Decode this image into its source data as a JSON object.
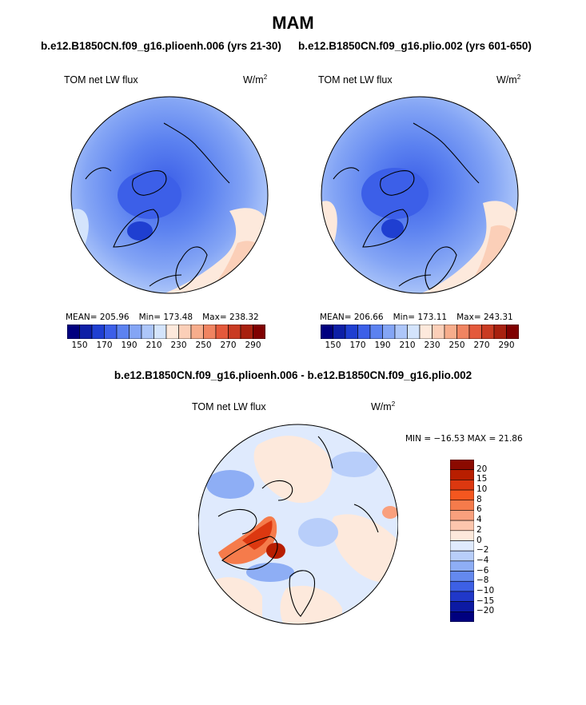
{
  "title": "MAM",
  "panels": [
    {
      "case": "b.e12.B1850CN.f09_g16.plioenh.006 (yrs 21-30)",
      "variable": "TOM net LW flux",
      "units": "W/m",
      "units_sup": "2",
      "mean": "MEAN= 205.96",
      "min": "Min= 173.48",
      "max": "Max= 238.32"
    },
    {
      "case": "b.e12.B1850CN.f09_g16.plio.002 (yrs 601-650)",
      "variable": "TOM net LW flux",
      "units": "W/m",
      "units_sup": "2",
      "mean": "MEAN= 206.66",
      "min": "Min= 173.11",
      "max": "Max= 243.31"
    }
  ],
  "difference": {
    "title": "b.e12.B1850CN.f09_g16.plioenh.006 - b.e12.B1850CN.f09_g16.plio.002",
    "variable": "TOM net LW flux",
    "units": "W/m",
    "units_sup": "2",
    "minmax": "MIN = −16.53  MAX =   21.86"
  },
  "chart_data": {
    "type": "heatmap",
    "projection": "north polar stereographic",
    "title": "MAM",
    "panels": [
      {
        "case": "b.e12.B1850CN.f09_g16.plioenh.006 (yrs 21-30)",
        "mean": 205.96,
        "min": 173.48,
        "max": 238.32
      },
      {
        "case": "b.e12.B1850CN.f09_g16.plio.002 (yrs 601-650)",
        "mean": 206.66,
        "min": 173.11,
        "max": 243.31
      },
      {
        "case": "difference",
        "min": -16.53,
        "max": 21.86
      }
    ],
    "colorbar_main": {
      "tick_labels": [
        "150",
        "170",
        "190",
        "210",
        "230",
        "250",
        "270",
        "290"
      ],
      "colors": [
        "#00007f",
        "#0d1fa6",
        "#1f3fd1",
        "#3c5fe8",
        "#5c82f0",
        "#84a5f5",
        "#adc6f9",
        "#d4e4fc",
        "#fde9dc",
        "#fbcfb8",
        "#f7ad8c",
        "#f08461",
        "#e4593b",
        "#c93b22",
        "#a8210f",
        "#800000"
      ]
    },
    "colorbar_diff": {
      "tick_labels": [
        "20",
        "15",
        "10",
        "8",
        "6",
        "4",
        "2",
        "0",
        "−2",
        "−4",
        "−6",
        "−8",
        "−10",
        "−15",
        "−20"
      ],
      "colors": [
        "#8b0a00",
        "#b81e00",
        "#dc3810",
        "#f4571f",
        "#f57b4b",
        "#f9a07d",
        "#fcc6ad",
        "#fde9dc",
        "#dfeafd",
        "#b8cefa",
        "#8eaef5",
        "#6489ef",
        "#3d60e5",
        "#2038c9",
        "#0c1aa3",
        "#00007f"
      ]
    }
  }
}
